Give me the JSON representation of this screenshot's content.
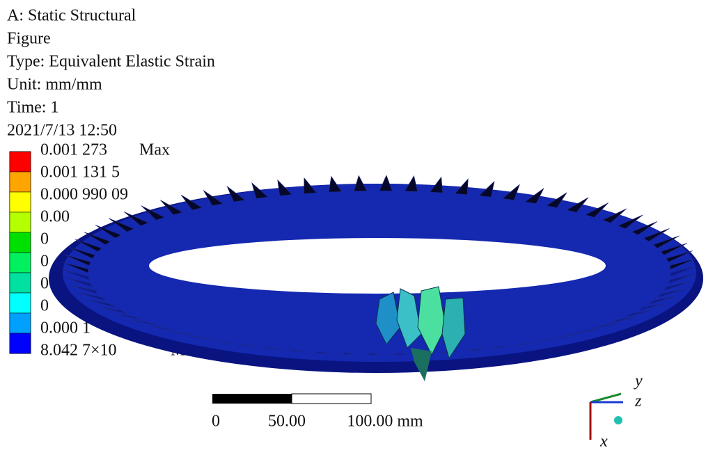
{
  "header": {
    "lines": [
      "A: Static Structural",
      "Figure",
      "Type: Equivalent Elastic Strain",
      "Unit: mm/mm",
      "Time: 1",
      "2021/7/13  12:50"
    ]
  },
  "legend": {
    "labels": [
      "0.001 273",
      "0.001 131 5",
      "0.000 990 09",
      "0.00",
      "0",
      "0",
      "0",
      "0",
      "0.000 1",
      "8.042 7×10"
    ],
    "max": "Max",
    "min": "Min"
  },
  "scale_bar": {
    "labels": [
      "0",
      "50.00",
      "100.00 mm"
    ]
  },
  "triad": {
    "labels": [
      "y",
      "z",
      "x"
    ]
  }
}
